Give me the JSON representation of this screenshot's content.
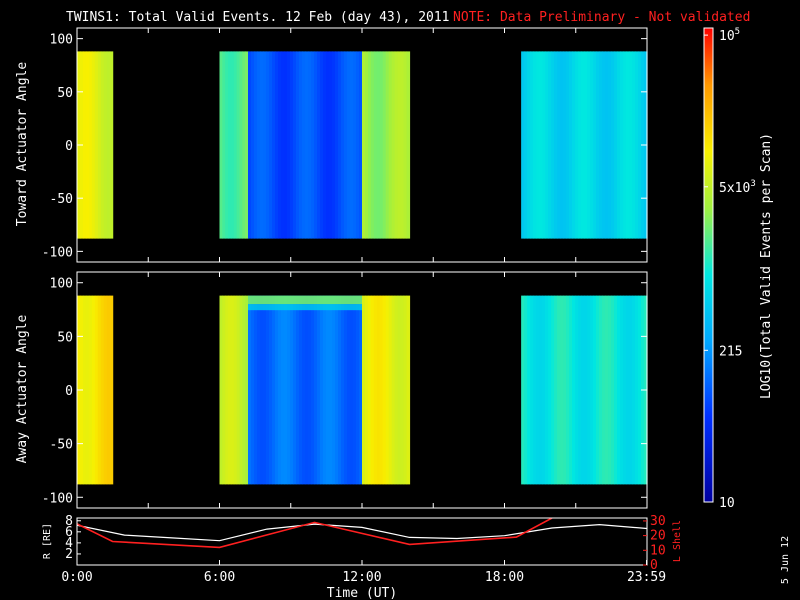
{
  "chart_data": [
    {
      "type": "heatmap",
      "title": "TWINS1: Total Valid Events. 12 Feb (day  43), 2011",
      "note": "NOTE: Data Preliminary - Not validated",
      "ylabel": "Toward Actuator Angle",
      "xlim": [
        0,
        24
      ],
      "ylim": [
        -110,
        110
      ],
      "yticks": [
        "100",
        "50",
        "0",
        "-50",
        "-100"
      ],
      "ytick_values": [
        100,
        50,
        0,
        -50,
        -100
      ],
      "data_ylim": [
        -88,
        88
      ],
      "segments": [
        {
          "start": 0.0,
          "end": 1.5,
          "level": 0.7
        },
        {
          "start": 6.0,
          "end": 7.2,
          "level": 0.56
        },
        {
          "start": 7.2,
          "end": 12.0,
          "level": 0.22
        },
        {
          "start": 12.0,
          "end": 14.0,
          "level": 0.62
        },
        {
          "start": 18.7,
          "end": 24.0,
          "level": 0.44
        }
      ]
    },
    {
      "type": "heatmap",
      "ylabel": "Away Actuator Angle",
      "xlim": [
        0,
        24
      ],
      "ylim": [
        -110,
        110
      ],
      "yticks": [
        "100",
        "50",
        "0",
        "-50",
        "-100"
      ],
      "ytick_values": [
        100,
        50,
        0,
        -50,
        -100
      ],
      "data_ylim": [
        -88,
        88
      ],
      "segments": [
        {
          "start": 0.0,
          "end": 1.5,
          "level": 0.76
        },
        {
          "start": 6.0,
          "end": 7.2,
          "level": 0.66
        },
        {
          "start": 7.2,
          "end": 12.0,
          "level": 0.26
        },
        {
          "start": 12.0,
          "end": 14.0,
          "level": 0.72
        },
        {
          "start": 18.7,
          "end": 24.0,
          "level": 0.48
        }
      ]
    },
    {
      "type": "line",
      "xlabel": "Time (UT)",
      "ylabel": "R [RE]",
      "ylabel_right": "L Shell",
      "xlim": [
        0,
        24
      ],
      "xticks": [
        "0:00",
        "6:00",
        "12:00",
        "18:00",
        "23:59"
      ],
      "xtick_values": [
        0,
        6,
        12,
        18,
        23.98
      ],
      "yticks_left": [
        "8",
        "6",
        "4",
        "2"
      ],
      "ytick_left_values": [
        8,
        6,
        4,
        2
      ],
      "ylim_left": [
        0,
        8.5
      ],
      "yticks_right": [
        "30",
        "20",
        "10",
        "0"
      ],
      "ytick_right_values": [
        30,
        20,
        10,
        0
      ],
      "ylim_right": [
        0,
        32
      ],
      "series": [
        {
          "axis": "left",
          "color": "#ffffff",
          "x": [
            0,
            2,
            4,
            6,
            8,
            10,
            12,
            14,
            16,
            18,
            20,
            22,
            24
          ],
          "y": [
            7.2,
            5.4,
            4.9,
            4.4,
            6.5,
            7.4,
            6.8,
            5.0,
            4.8,
            5.3,
            6.7,
            7.3,
            6.6
          ]
        },
        {
          "axis": "right",
          "color": "#ff2020",
          "x": [
            0,
            1.5,
            6,
            10,
            14,
            18.5,
            20
          ],
          "y": [
            28,
            16,
            12,
            29,
            14,
            19,
            32
          ]
        }
      ]
    }
  ],
  "colorbar": {
    "label": "LOG10(Total Valid Events per Scan)",
    "ticks": [
      {
        "base": "10",
        "exp": "5",
        "level": 0.985
      },
      {
        "base": "5x10",
        "exp": "3",
        "level": 0.665
      },
      {
        "base": "215",
        "exp": "",
        "level": 0.32
      },
      {
        "base": "10",
        "exp": "",
        "level": 0.0
      }
    ]
  },
  "date_stamp": "5 Jun 12"
}
